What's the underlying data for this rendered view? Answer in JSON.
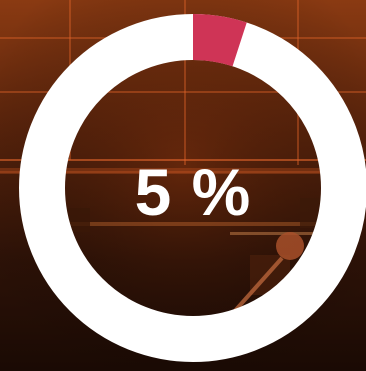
{
  "progress": {
    "value_percent": 5,
    "label": "5 %",
    "track_color": "#ffffff",
    "fill_color": "#cf3456"
  },
  "background": {
    "description_colors": {
      "top": "#8a3a12",
      "middle": "#4a1c08",
      "bottom": "#1f0d05",
      "grid_line": "#e0642a"
    }
  }
}
